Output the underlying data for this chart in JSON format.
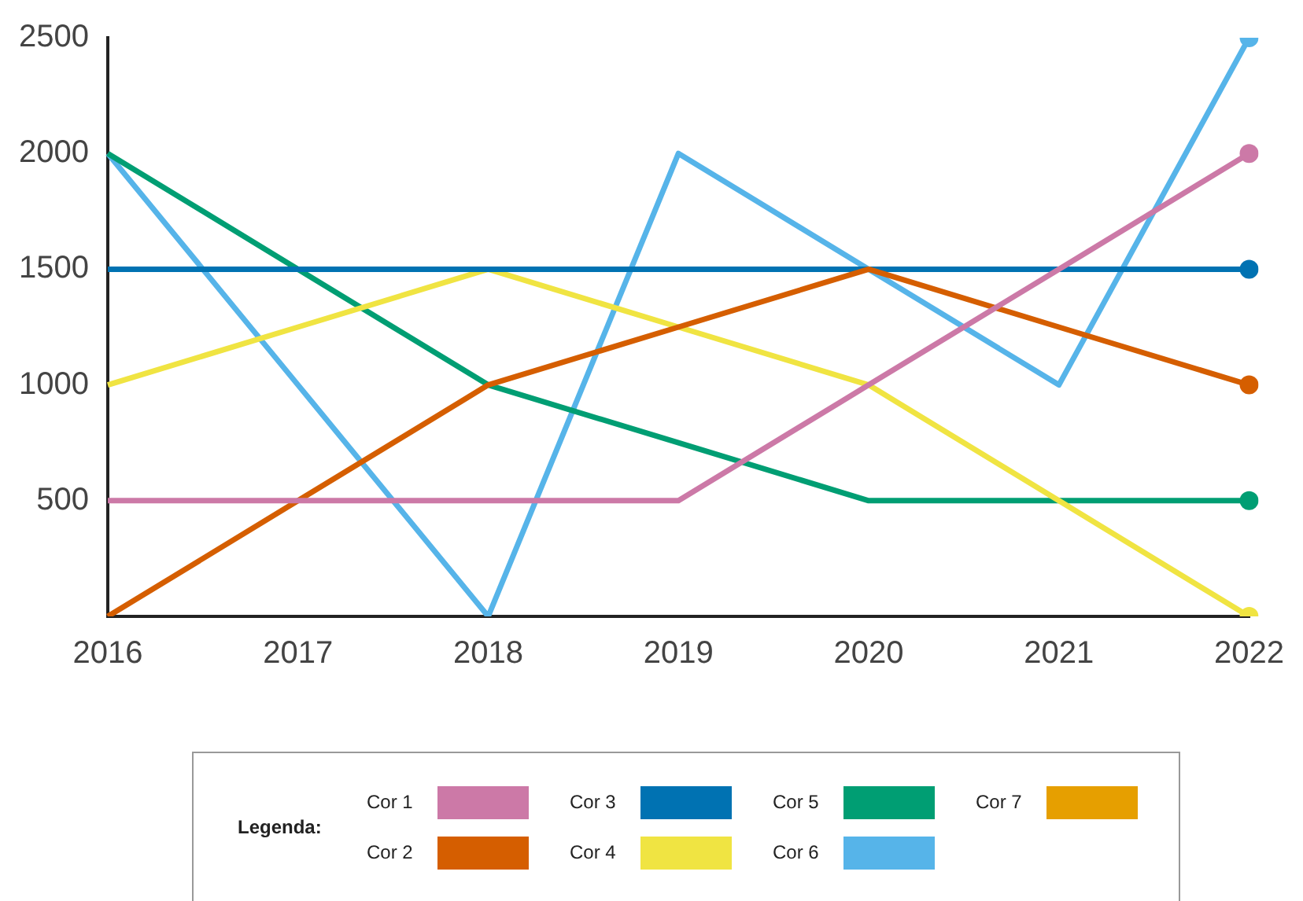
{
  "chart_data": {
    "type": "line",
    "legend_title": "Legenda:",
    "categories": [
      "2016",
      "2017",
      "2018",
      "2019",
      "2020",
      "2021",
      "2022"
    ],
    "series": [
      {
        "name": "Cor 1",
        "color": "#cc79a7",
        "values": [
          500,
          500,
          500,
          500,
          1000,
          1500,
          2000
        ]
      },
      {
        "name": "Cor 2",
        "color": "#d55e00",
        "values": [
          0,
          500,
          1000,
          1250,
          1500,
          1250,
          1000
        ]
      },
      {
        "name": "Cor 3",
        "color": "#0072b2",
        "values": [
          1500,
          1500,
          1500,
          1500,
          1500,
          1500,
          1500
        ]
      },
      {
        "name": "Cor 4",
        "color": "#f0e442",
        "values": [
          1000,
          1250,
          1500,
          1250,
          1000,
          500,
          0
        ]
      },
      {
        "name": "Cor 5",
        "color": "#009e73",
        "values": [
          2000,
          1500,
          1000,
          750,
          500,
          500,
          500
        ]
      },
      {
        "name": "Cor 6",
        "color": "#56b4e9",
        "values": [
          2000,
          1000,
          0,
          2000,
          1500,
          1000,
          2500
        ]
      },
      {
        "name": "Cor 7",
        "color": "#e69f00",
        "values": [
          null,
          null,
          null,
          null,
          null,
          null,
          null
        ]
      }
    ],
    "ylim": [
      0,
      2500
    ],
    "yticks": [
      500,
      1000,
      1500,
      2000,
      2500
    ],
    "grid": false,
    "legend": "bottom",
    "line_style": "solid"
  }
}
